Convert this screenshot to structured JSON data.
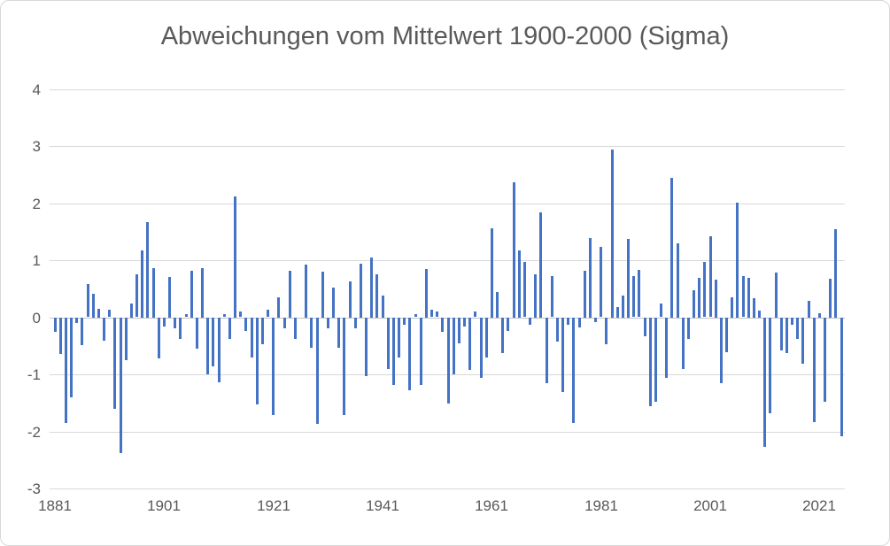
{
  "chart_data": {
    "type": "bar",
    "title": "Abweichungen vom Mittelwert 1900-2000 (Sigma)",
    "xlabel": "",
    "ylabel": "",
    "ylim": [
      -3,
      4
    ],
    "grid": true,
    "legend": "none",
    "bar_color": "#4472C4",
    "gridline_color": "#D9D9D9",
    "axis_label_color": "#595959",
    "title_color": "#595959",
    "x_tick_labels": [
      "1881",
      "1901",
      "1921",
      "1941",
      "1961",
      "1981",
      "2001",
      "2021"
    ],
    "y_tick_labels": [
      "4",
      "3",
      "2",
      "1",
      "0",
      "-1",
      "-2",
      "-3"
    ],
    "start_year": 1881,
    "end_year": 2025,
    "years": [
      1881,
      1882,
      1883,
      1884,
      1885,
      1886,
      1887,
      1888,
      1889,
      1890,
      1891,
      1892,
      1893,
      1894,
      1895,
      1896,
      1897,
      1898,
      1899,
      1900,
      1901,
      1902,
      1903,
      1904,
      1905,
      1906,
      1907,
      1908,
      1909,
      1910,
      1911,
      1912,
      1913,
      1914,
      1915,
      1916,
      1917,
      1918,
      1919,
      1920,
      1921,
      1922,
      1923,
      1924,
      1925,
      1926,
      1927,
      1928,
      1929,
      1930,
      1931,
      1932,
      1933,
      1934,
      1935,
      1936,
      1937,
      1938,
      1939,
      1940,
      1941,
      1942,
      1943,
      1944,
      1945,
      1946,
      1947,
      1948,
      1949,
      1950,
      1951,
      1952,
      1953,
      1954,
      1955,
      1956,
      1957,
      1958,
      1959,
      1960,
      1961,
      1962,
      1963,
      1964,
      1965,
      1966,
      1967,
      1968,
      1969,
      1970,
      1971,
      1972,
      1973,
      1974,
      1975,
      1976,
      1977,
      1978,
      1979,
      1980,
      1981,
      1982,
      1983,
      1984,
      1985,
      1986,
      1987,
      1988,
      1989,
      1990,
      1991,
      1992,
      1993,
      1994,
      1995,
      1996,
      1997,
      1998,
      1999,
      2000,
      2001,
      2002,
      2003,
      2004,
      2005,
      2006,
      2007,
      2008,
      2009,
      2010,
      2011,
      2012,
      2013,
      2014,
      2015,
      2016,
      2017,
      2018,
      2019,
      2020,
      2021,
      2022,
      2023,
      2024,
      2025
    ],
    "values": [
      -0.25,
      -0.63,
      -1.84,
      -1.4,
      -0.1,
      -0.48,
      0.58,
      0.42,
      0.15,
      -0.4,
      0.13,
      -1.6,
      -2.37,
      -0.75,
      0.25,
      0.75,
      1.18,
      1.67,
      0.87,
      -0.72,
      -0.16,
      0.71,
      -0.18,
      -0.37,
      0.05,
      0.82,
      -0.55,
      0.87,
      -1.0,
      -0.85,
      -1.13,
      0.05,
      -0.38,
      2.12,
      0.1,
      -0.24,
      -0.7,
      -1.52,
      -0.47,
      0.13,
      -1.7,
      0.36,
      -0.18,
      0.82,
      -0.37,
      0.0,
      0.93,
      -0.53,
      -1.87,
      0.8,
      -0.18,
      0.53,
      -0.53,
      -1.7,
      0.63,
      -0.18,
      0.95,
      -1.02,
      1.05,
      0.76,
      0.39,
      -0.9,
      -1.18,
      -0.7,
      -0.13,
      -1.28,
      0.05,
      -1.18,
      0.85,
      0.13,
      0.1,
      -0.25,
      -1.5,
      -1.0,
      -0.45,
      -0.15,
      -0.92,
      0.1,
      -1.05,
      -0.7,
      1.57,
      0.45,
      -0.62,
      -0.23,
      2.37,
      1.18,
      0.97,
      -0.13,
      0.76,
      1.85,
      -1.15,
      0.72,
      -0.42,
      -1.3,
      -0.13,
      -1.85,
      -0.17,
      0.82,
      1.4,
      -0.08,
      1.23,
      -0.47,
      2.95,
      0.18,
      0.39,
      1.38,
      0.72,
      0.83,
      -0.32,
      -1.55,
      -1.48,
      0.24,
      -1.05,
      2.45,
      1.3,
      -0.9,
      -0.38,
      0.48,
      0.7,
      0.97,
      1.42,
      0.67,
      -1.15,
      -0.6,
      0.36,
      2.02,
      0.72,
      0.7,
      0.34,
      0.12,
      -2.27,
      -1.68,
      0.79,
      -0.57,
      -0.62,
      -0.12,
      -0.37,
      -0.8,
      0.29,
      -1.83,
      0.08,
      -1.47,
      0.68,
      1.55,
      -2.08
    ]
  }
}
